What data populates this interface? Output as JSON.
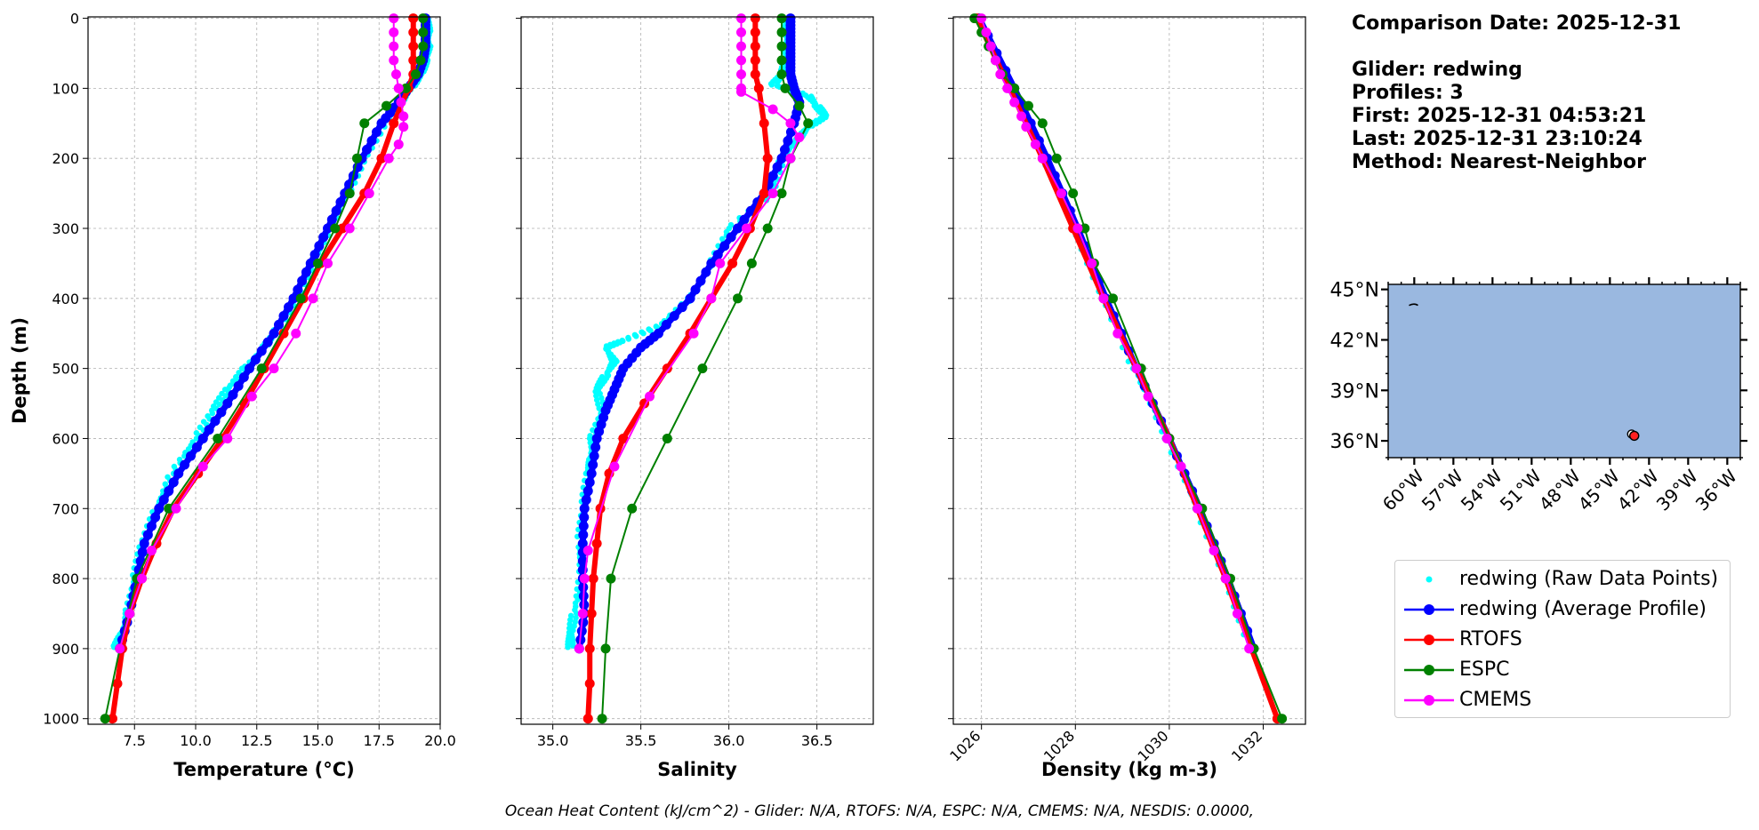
{
  "info": {
    "comparison_date": "Comparison Date: 2025-12-31",
    "glider": "Glider: redwing",
    "profiles": "Profiles: 3",
    "first": "First: 2025-12-31 04:53:21",
    "last": "Last: 2025-12-31 23:10:24",
    "method": "Method: Nearest-Neighbor"
  },
  "footer": "Ocean Heat Content (kJ/cm^2) - Glider: N/A,  RTOFS: N/A,  ESPC: N/A,  CMEMS: N/A,  NESDIS: 0.0000,",
  "legend": [
    {
      "label": "redwing (Raw Data Points)",
      "color": "#00ffff",
      "style": "points"
    },
    {
      "label": "redwing (Average Profile)",
      "color": "#0000ff",
      "style": "line"
    },
    {
      "label": "RTOFS",
      "color": "#ff0000",
      "style": "line"
    },
    {
      "label": "ESPC",
      "color": "#008000",
      "style": "line"
    },
    {
      "label": "CMEMS",
      "color": "#ff00ff",
      "style": "line"
    }
  ],
  "colors": {
    "raw": "#00ffff",
    "glider": "#0000ff",
    "rtofs": "#ff0000",
    "espc": "#008000",
    "cmems": "#ff00ff",
    "ocean": "#9ab8e0"
  },
  "chart_data": [
    {
      "type": "line",
      "id": "temp",
      "xlabel": "Temperature (°C)",
      "ylabel": "Depth (m)",
      "xlim": [
        5.6,
        20.0
      ],
      "ylim": [
        1000,
        0
      ],
      "xticks": [
        7.5,
        10.0,
        12.5,
        15.0,
        17.5,
        20.0
      ],
      "xtick_labels": [
        "7.5",
        "10.0",
        "12.5",
        "15.0",
        "17.5",
        "20.0"
      ],
      "yticks": [
        0,
        100,
        200,
        300,
        400,
        500,
        600,
        700,
        800,
        900,
        1000
      ],
      "grid": true,
      "series": [
        {
          "name": "redwing (Raw Data Points)",
          "key": "raw",
          "depth": [
            0,
            20,
            40,
            60,
            80,
            100,
            120,
            150,
            200,
            250,
            300,
            350,
            400,
            450,
            470,
            500,
            530,
            560,
            600,
            650,
            700,
            750,
            800,
            850,
            880,
            900
          ],
          "values": [
            19.5,
            19.5,
            19.5,
            19.4,
            19.2,
            18.8,
            18.4,
            17.7,
            16.9,
            16.2,
            15.5,
            14.8,
            14.1,
            13.2,
            12.8,
            12.0,
            11.3,
            10.7,
            10.0,
            9.0,
            8.4,
            7.8,
            7.5,
            7.2,
            7.0,
            6.6
          ]
        },
        {
          "name": "redwing (Average Profile)",
          "key": "glider",
          "depth": [
            0,
            20,
            40,
            60,
            80,
            100,
            120,
            150,
            200,
            250,
            300,
            350,
            400,
            450,
            500,
            550,
            600,
            650,
            700,
            750,
            800,
            850,
            900
          ],
          "values": [
            19.4,
            19.4,
            19.4,
            19.3,
            19.1,
            18.7,
            18.3,
            17.6,
            16.8,
            16.1,
            15.4,
            14.7,
            14.0,
            13.2,
            12.2,
            11.3,
            10.3,
            9.3,
            8.5,
            7.9,
            7.6,
            7.3,
            6.9
          ]
        },
        {
          "name": "RTOFS",
          "key": "rtofs",
          "depth": [
            0,
            20,
            40,
            60,
            80,
            100,
            150,
            200,
            250,
            300,
            350,
            400,
            450,
            500,
            550,
            600,
            650,
            700,
            750,
            800,
            850,
            900,
            950,
            1000
          ],
          "values": [
            18.9,
            18.9,
            18.9,
            18.9,
            18.9,
            18.7,
            18.1,
            17.6,
            16.9,
            16.0,
            15.1,
            14.4,
            13.6,
            12.8,
            12.0,
            11.1,
            10.1,
            9.1,
            8.4,
            7.8,
            7.3,
            7.0,
            6.8,
            6.6
          ]
        },
        {
          "name": "ESPC",
          "key": "espc",
          "depth": [
            0,
            20,
            40,
            60,
            80,
            100,
            125,
            150,
            200,
            250,
            300,
            350,
            400,
            500,
            600,
            700,
            800,
            900,
            1000
          ],
          "values": [
            19.3,
            19.3,
            19.3,
            19.2,
            19.0,
            18.6,
            17.8,
            16.9,
            16.6,
            16.3,
            15.7,
            15.0,
            14.3,
            12.7,
            10.9,
            8.9,
            7.6,
            6.9,
            6.3
          ]
        },
        {
          "name": "CMEMS",
          "key": "cmems",
          "depth": [
            0,
            20,
            40,
            60,
            80,
            100,
            120,
            140,
            155,
            180,
            200,
            250,
            300,
            350,
            400,
            450,
            500,
            540,
            600,
            640,
            700,
            760,
            800,
            850,
            900
          ],
          "values": [
            18.1,
            18.1,
            18.1,
            18.1,
            18.2,
            18.3,
            18.4,
            18.5,
            18.5,
            18.3,
            17.9,
            17.1,
            16.3,
            15.4,
            14.8,
            14.1,
            13.2,
            12.3,
            11.3,
            10.3,
            9.2,
            8.2,
            7.8,
            7.3,
            6.9
          ]
        }
      ]
    },
    {
      "type": "line",
      "id": "sal",
      "xlabel": "Salinity",
      "xlim": [
        34.82,
        36.82
      ],
      "ylim": [
        1000,
        0
      ],
      "xticks": [
        35.0,
        35.5,
        36.0,
        36.5
      ],
      "xtick_labels": [
        "35.0",
        "35.5",
        "36.0",
        "36.5"
      ],
      "yticks": [
        0,
        100,
        200,
        300,
        400,
        500,
        600,
        700,
        800,
        900,
        1000
      ],
      "grid": true,
      "series": [
        {
          "name": "redwing (Raw Data Points)",
          "key": "raw",
          "depth": [
            0,
            20,
            40,
            60,
            80,
            95,
            110,
            125,
            140,
            155,
            170,
            200,
            250,
            300,
            350,
            400,
            440,
            460,
            470,
            490,
            510,
            530,
            560,
            600,
            630,
            650,
            700,
            750,
            800,
            850,
            880,
            900
          ],
          "values": [
            36.33,
            36.33,
            36.33,
            36.33,
            36.3,
            36.25,
            36.45,
            36.5,
            36.55,
            36.45,
            36.4,
            36.3,
            36.25,
            36.0,
            35.9,
            35.78,
            35.6,
            35.4,
            35.3,
            35.35,
            35.3,
            35.25,
            35.28,
            35.22,
            35.22,
            35.2,
            35.17,
            35.15,
            35.16,
            35.12,
            35.1,
            35.1
          ]
        },
        {
          "name": "redwing (Average Profile)",
          "key": "glider",
          "depth": [
            0,
            20,
            40,
            60,
            80,
            100,
            120,
            150,
            200,
            250,
            300,
            350,
            400,
            450,
            470,
            500,
            530,
            560,
            600,
            650,
            700,
            750,
            800,
            850,
            900
          ],
          "values": [
            36.35,
            36.35,
            36.35,
            36.35,
            36.35,
            36.37,
            36.4,
            36.37,
            36.3,
            36.2,
            36.05,
            35.9,
            35.78,
            35.6,
            35.5,
            35.4,
            35.35,
            35.3,
            35.25,
            35.22,
            35.18,
            35.17,
            35.17,
            35.18,
            35.15
          ]
        },
        {
          "name": "RTOFS",
          "key": "rtofs",
          "depth": [
            0,
            20,
            40,
            60,
            80,
            100,
            150,
            200,
            250,
            300,
            350,
            400,
            450,
            500,
            550,
            600,
            650,
            700,
            750,
            800,
            850,
            900,
            950,
            1000
          ],
          "values": [
            36.15,
            36.15,
            36.15,
            36.15,
            36.15,
            36.17,
            36.2,
            36.22,
            36.2,
            36.12,
            36.02,
            35.9,
            35.78,
            35.65,
            35.52,
            35.4,
            35.32,
            35.27,
            35.25,
            35.23,
            35.22,
            35.21,
            35.21,
            35.2
          ]
        },
        {
          "name": "ESPC",
          "key": "espc",
          "depth": [
            0,
            20,
            40,
            60,
            80,
            100,
            125,
            150,
            200,
            250,
            300,
            350,
            400,
            500,
            600,
            700,
            800,
            900,
            1000
          ],
          "values": [
            36.3,
            36.3,
            36.3,
            36.3,
            36.3,
            36.32,
            36.4,
            36.45,
            36.35,
            36.3,
            36.22,
            36.13,
            36.05,
            35.85,
            35.65,
            35.45,
            35.33,
            35.3,
            35.28
          ]
        },
        {
          "name": "CMEMS",
          "key": "cmems",
          "depth": [
            0,
            20,
            40,
            60,
            80,
            100,
            105,
            130,
            150,
            170,
            200,
            250,
            300,
            350,
            400,
            450,
            540,
            640,
            760,
            800,
            850,
            900
          ],
          "values": [
            36.07,
            36.07,
            36.07,
            36.07,
            36.07,
            36.07,
            36.07,
            36.25,
            36.35,
            36.4,
            36.35,
            36.25,
            36.1,
            35.95,
            35.9,
            35.8,
            35.55,
            35.35,
            35.2,
            35.18,
            35.17,
            35.15
          ]
        }
      ]
    },
    {
      "type": "line",
      "id": "dens",
      "xlabel": "Density (kg m-3)",
      "xlim": [
        1025.4,
        1032.9
      ],
      "ylim": [
        1000,
        0
      ],
      "xticks": [
        1026,
        1028,
        1030,
        1032
      ],
      "xtick_labels": [
        "1026",
        "1028",
        "1030",
        "1032"
      ],
      "yticks": [
        0,
        100,
        200,
        300,
        400,
        500,
        600,
        700,
        800,
        900,
        1000
      ],
      "grid": true,
      "series": [
        {
          "name": "redwing (Raw Data Points)",
          "key": "raw",
          "depth": [
            0,
            100,
            200,
            300,
            400,
            500,
            600,
            700,
            800,
            900
          ],
          "values": [
            1025.9,
            1026.65,
            1027.35,
            1028.0,
            1028.6,
            1029.25,
            1029.95,
            1030.6,
            1031.2,
            1031.75
          ]
        },
        {
          "name": "redwing (Average Profile)",
          "key": "glider",
          "depth": [
            0,
            100,
            200,
            300,
            400,
            500,
            600,
            700,
            800,
            900
          ],
          "values": [
            1025.95,
            1026.7,
            1027.4,
            1028.05,
            1028.65,
            1029.3,
            1030.0,
            1030.65,
            1031.25,
            1031.8
          ]
        },
        {
          "name": "RTOFS",
          "key": "rtofs",
          "depth": [
            0,
            100,
            200,
            300,
            400,
            500,
            600,
            700,
            800,
            900,
            1000
          ],
          "values": [
            1025.9,
            1026.6,
            1027.3,
            1027.95,
            1028.6,
            1029.3,
            1030.0,
            1030.6,
            1031.2,
            1031.75,
            1032.3
          ]
        },
        {
          "name": "ESPC",
          "key": "espc",
          "depth": [
            0,
            20,
            40,
            60,
            80,
            100,
            125,
            150,
            200,
            250,
            300,
            350,
            400,
            500,
            600,
            700,
            800,
            900,
            1000
          ],
          "values": [
            1025.85,
            1026.0,
            1026.15,
            1026.3,
            1026.45,
            1026.7,
            1027.0,
            1027.3,
            1027.6,
            1027.95,
            1028.2,
            1028.4,
            1028.8,
            1029.4,
            1030.0,
            1030.7,
            1031.3,
            1031.8,
            1032.4
          ]
        },
        {
          "name": "CMEMS",
          "key": "cmems",
          "depth": [
            0,
            20,
            40,
            60,
            80,
            100,
            120,
            140,
            155,
            180,
            200,
            250,
            300,
            350,
            400,
            450,
            500,
            540,
            600,
            640,
            700,
            760,
            800,
            850,
            900
          ],
          "values": [
            1026.0,
            1026.1,
            1026.2,
            1026.3,
            1026.4,
            1026.55,
            1026.7,
            1026.85,
            1026.95,
            1027.15,
            1027.3,
            1027.7,
            1028.05,
            1028.35,
            1028.6,
            1028.9,
            1029.3,
            1029.55,
            1029.95,
            1030.25,
            1030.6,
            1030.95,
            1031.2,
            1031.45,
            1031.7
          ]
        }
      ]
    },
    {
      "type": "map",
      "id": "map",
      "lon_range": [
        -62,
        -35
      ],
      "lat_range": [
        35,
        45.3
      ],
      "xticks": [
        -60,
        -57,
        -54,
        -51,
        -48,
        -45,
        -42,
        -39,
        -36
      ],
      "xtick_labels": [
        "60°W",
        "57°W",
        "54°W",
        "51°W",
        "48°W",
        "45°W",
        "42°W",
        "39°W",
        "36°W"
      ],
      "yticks": [
        45,
        42,
        39,
        36
      ],
      "ytick_labels": [
        "45°N",
        "42°N",
        "39°N",
        "36°N"
      ],
      "locations": [
        {
          "lon": -43.2,
          "lat": 36.3
        }
      ]
    }
  ]
}
